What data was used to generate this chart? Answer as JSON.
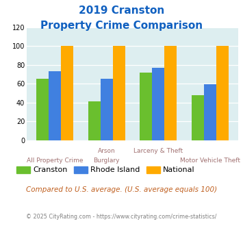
{
  "title_line1": "2019 Cranston",
  "title_line2": "Property Crime Comparison",
  "series": {
    "Cranston": [
      65,
      41,
      72,
      48
    ],
    "Rhode Island": [
      73,
      65,
      77,
      59
    ],
    "National": [
      100,
      100,
      100,
      100
    ]
  },
  "colors": {
    "Cranston": "#6abf2e",
    "Rhode Island": "#4080e0",
    "National": "#ffaa00"
  },
  "top_labels": [
    "",
    "Arson",
    "Larceny & Theft",
    ""
  ],
  "bottom_labels": [
    "All Property Crime",
    "Burglary",
    "",
    "Motor Vehicle Theft"
  ],
  "ylim": [
    0,
    120
  ],
  "yticks": [
    0,
    20,
    40,
    60,
    80,
    100,
    120
  ],
  "bg_color": "#ddeef0",
  "title_color": "#1060c0",
  "xlabel_color": "#a07070",
  "note_text": "Compared to U.S. average. (U.S. average equals 100)",
  "note_color": "#c06020",
  "footer_text": "© 2025 CityRating.com - https://www.cityrating.com/crime-statistics/",
  "footer_color": "#808080"
}
